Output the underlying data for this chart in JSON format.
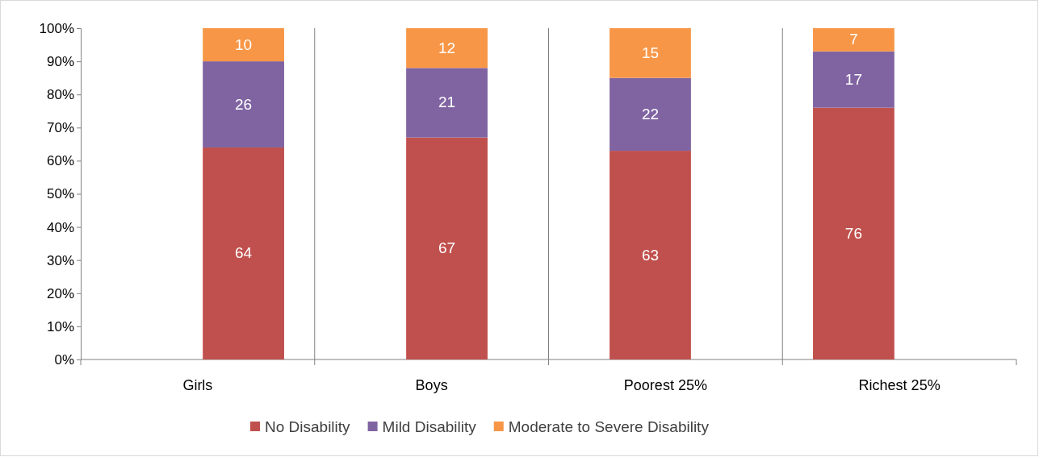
{
  "chart_data": {
    "type": "bar",
    "stacked": true,
    "categories": [
      "Girls",
      "Boys",
      "Poorest 25%",
      "Richest 25%"
    ],
    "series": [
      {
        "name": "No Disability",
        "color": "#c0504d",
        "values": [
          64,
          67,
          63,
          76
        ]
      },
      {
        "name": "Mild Disability",
        "color": "#8064a2",
        "values": [
          26,
          21,
          22,
          17
        ]
      },
      {
        "name": "Moderate to Severe Disability",
        "color": "#f79646",
        "values": [
          10,
          12,
          15,
          7
        ]
      }
    ],
    "ylim": [
      0,
      100
    ],
    "yticks": [
      {
        "value": 0,
        "label": "0%"
      },
      {
        "value": 10,
        "label": "10%"
      },
      {
        "value": 20,
        "label": "20%"
      },
      {
        "value": 30,
        "label": "30%"
      },
      {
        "value": 40,
        "label": "40%"
      },
      {
        "value": 50,
        "label": "50%"
      },
      {
        "value": 60,
        "label": "60%"
      },
      {
        "value": 70,
        "label": "70%"
      },
      {
        "value": 80,
        "label": "80%"
      },
      {
        "value": 90,
        "label": "90%"
      },
      {
        "value": 100,
        "label": "100%"
      }
    ],
    "grid": "x",
    "legend": "bottom",
    "data_labels": true
  }
}
